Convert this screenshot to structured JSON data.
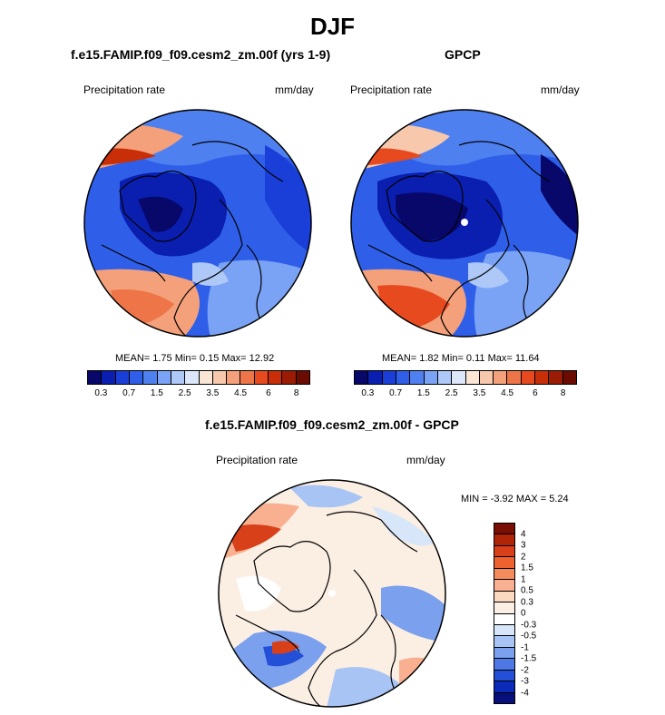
{
  "title": "DJF",
  "panels": {
    "model": {
      "title": "f.e15.FAMIP.f09_f09.cesm2_zm.00f (yrs 1-9)",
      "variable": "Precipitation rate",
      "units": "mm/day",
      "stats": "MEAN=   1.75  Min=   0.15  Max=  12.92"
    },
    "obs": {
      "title": "GPCP",
      "variable": "Precipitation rate",
      "units": "mm/day",
      "stats": "MEAN=   1.82  Min=   0.11  Max=  11.64"
    },
    "diff": {
      "title": "f.e15.FAMIP.f09_f09.cesm2_zm.00f - GPCP",
      "variable": "Precipitation rate",
      "units": "mm/day",
      "stats": "MIN =  -3.92 MAX =   5.24"
    }
  },
  "colorbar_precip": {
    "labels": [
      "0.3",
      "0.7",
      "1.5",
      "2.5",
      "3.5",
      "4.5",
      "6",
      "8"
    ],
    "colors": [
      "#08086b",
      "#0a1fb0",
      "#1a3fd8",
      "#2f5fe8",
      "#4f80f0",
      "#7aa3f5",
      "#aec8f8",
      "#dce8fa",
      "#fbe6d6",
      "#f8c8ac",
      "#f4a07a",
      "#ee7548",
      "#e64a1e",
      "#c82e08",
      "#9a1c04",
      "#6a0c02"
    ]
  },
  "colorbar_diff": {
    "labels": [
      "4",
      "3",
      "2",
      "1.5",
      "1",
      "0.5",
      "0.3",
      "0",
      "-0.3",
      "-0.5",
      "-1",
      "-1.5",
      "-2",
      "-3",
      "-4"
    ],
    "colors": [
      "#7a0e04",
      "#b02408",
      "#d8401a",
      "#ee6230",
      "#f58a5a",
      "#f8b090",
      "#fbd8c0",
      "#fbeee2",
      "#ffffff",
      "#d8e6fa",
      "#a8c4f4",
      "#7aa0ee",
      "#4d78e6",
      "#2450d8",
      "#0a2ab8",
      "#07107a"
    ]
  }
}
